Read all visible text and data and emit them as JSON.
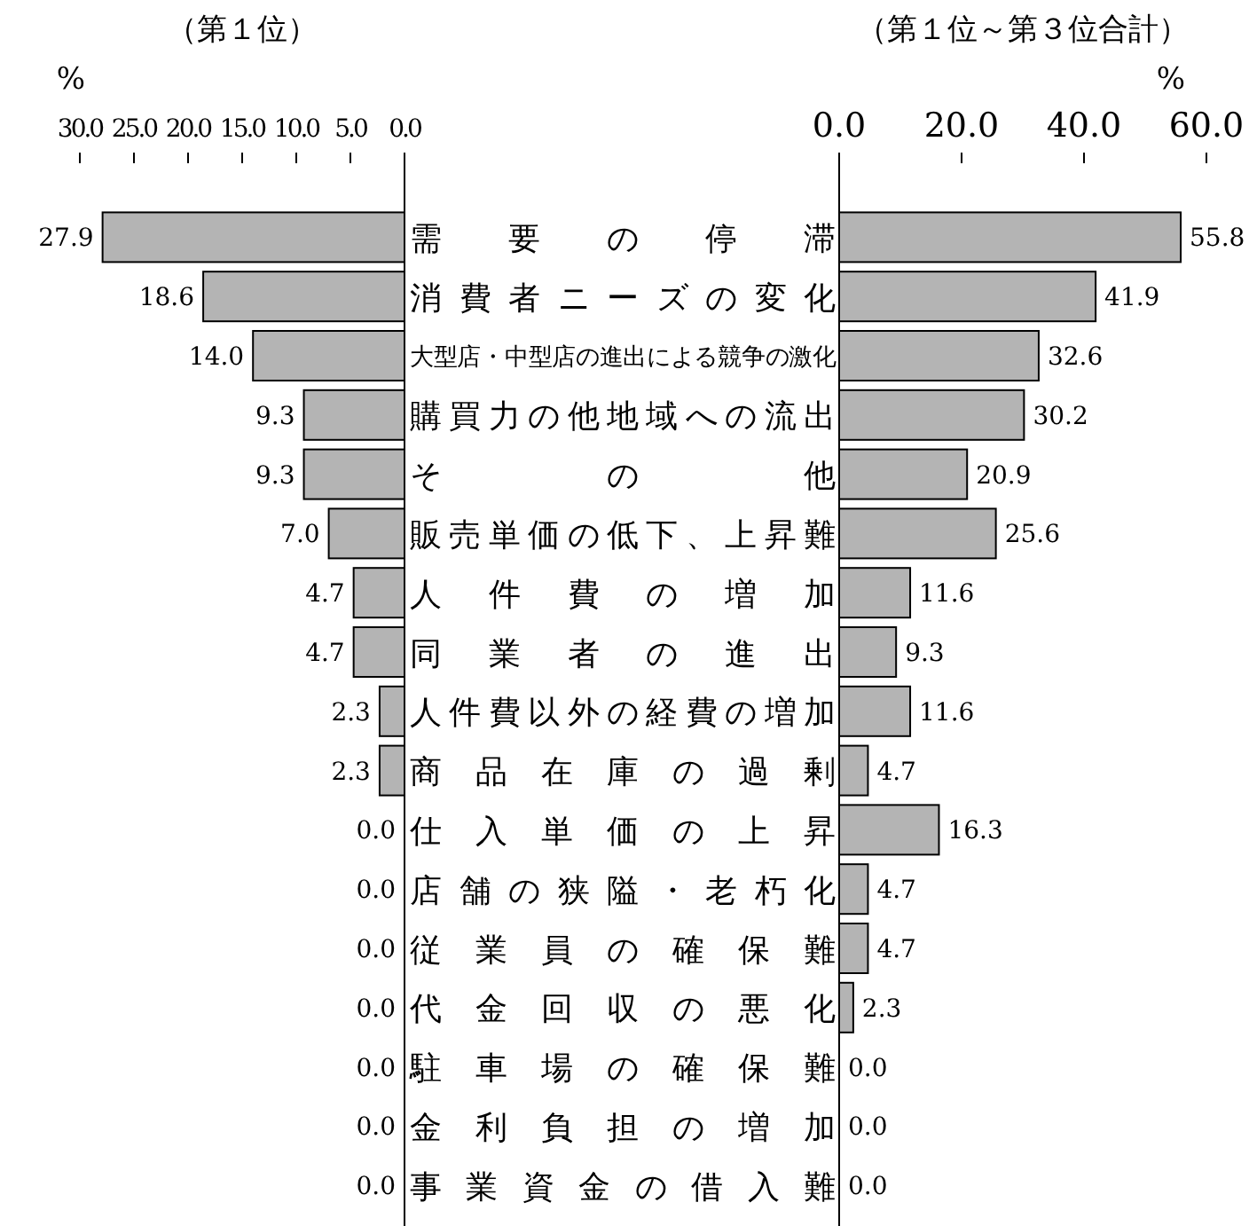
{
  "chart_data": [
    {
      "type": "bar",
      "orientation": "horizontal",
      "title": "（第１位）",
      "xlabel": "%",
      "color": "#b4b4b4",
      "categories": [
        "需要の停滞",
        "消費者ニーズの変化",
        "大型店・中型店の進出による競争の激化",
        "購買力の他地域への流出",
        "その他",
        "販売単価の低下、上昇難",
        "人件費の増加",
        "同業者の進出",
        "人件費以外の経費の増加",
        "商品在庫の過剰",
        "仕入単価の上昇",
        "店舗の狭隘・老朽化",
        "従業員の確保難",
        "代金回収の悪化",
        "駐車場の確保難",
        "金利負担の増加",
        "事業資金の借入難"
      ],
      "values": [
        27.9,
        18.6,
        14.0,
        9.3,
        9.3,
        7.0,
        4.7,
        4.7,
        2.3,
        2.3,
        0.0,
        0.0,
        0.0,
        0.0,
        0.0,
        0.0,
        0.0
      ],
      "value_labels": [
        "27.9",
        "18.6",
        "14.0",
        "9.3",
        "9.3",
        "7.0",
        "4.7",
        "4.7",
        "2.3",
        "2.3",
        "0.0",
        "0.0",
        "0.0",
        "0.0",
        "0.0",
        "0.0",
        "0.0"
      ],
      "xlim": [
        30,
        0
      ],
      "xticks": [
        {
          "value": 30,
          "label": "30.0"
        },
        {
          "value": 25,
          "label": "25.0"
        },
        {
          "value": 20,
          "label": "20.0"
        },
        {
          "value": 15,
          "label": "15.0"
        },
        {
          "value": 10,
          "label": "10.0"
        },
        {
          "value": 5,
          "label": "5.0"
        },
        {
          "value": 0,
          "label": "0.0"
        }
      ]
    },
    {
      "type": "bar",
      "orientation": "horizontal",
      "title": "（第１位～第３位合計）",
      "xlabel": "%",
      "color": "#b4b4b4",
      "values": [
        55.8,
        41.9,
        32.6,
        30.2,
        20.9,
        25.6,
        11.6,
        9.3,
        11.6,
        4.7,
        16.3,
        4.7,
        4.7,
        2.3,
        0.0,
        0.0,
        0.0
      ],
      "value_labels": [
        "55.8",
        "41.9",
        "32.6",
        "30.2",
        "20.9",
        "25.6",
        "11.6",
        "9.3",
        "11.6",
        "4.7",
        "16.3",
        "4.7",
        "4.7",
        "2.3",
        "0.0",
        "0.0",
        "0.0"
      ],
      "xlim": [
        0,
        60
      ],
      "xticks": [
        {
          "value": 0,
          "label": "0.0"
        },
        {
          "value": 20,
          "label": "20.0"
        },
        {
          "value": 40,
          "label": "40.0"
        },
        {
          "value": 60,
          "label": "60.0"
        }
      ]
    }
  ]
}
